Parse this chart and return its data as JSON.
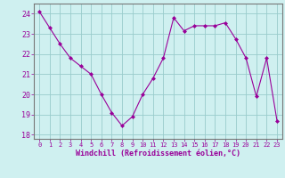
{
  "x": [
    0,
    1,
    2,
    3,
    4,
    5,
    6,
    7,
    8,
    9,
    10,
    11,
    12,
    13,
    14,
    15,
    16,
    17,
    18,
    19,
    20,
    21,
    22,
    23
  ],
  "y": [
    24.1,
    23.3,
    22.5,
    21.8,
    21.4,
    21.0,
    20.0,
    19.1,
    18.45,
    18.9,
    20.0,
    20.8,
    21.8,
    23.8,
    23.15,
    23.4,
    23.4,
    23.4,
    23.55,
    22.75,
    21.8,
    19.9,
    21.8,
    18.7
  ],
  "line_color": "#990099",
  "marker": "D",
  "marker_size": 2,
  "bg_color": "#cff0f0",
  "grid_color": "#99cccc",
  "xlabel": "Windchill (Refroidissement éolien,°C)",
  "xlabel_color": "#990099",
  "xlim": [
    -0.5,
    23.5
  ],
  "ylim": [
    17.8,
    24.5
  ],
  "yticks": [
    18,
    19,
    20,
    21,
    22,
    23,
    24
  ],
  "xticks": [
    0,
    1,
    2,
    3,
    4,
    5,
    6,
    7,
    8,
    9,
    10,
    11,
    12,
    13,
    14,
    15,
    16,
    17,
    18,
    19,
    20,
    21,
    22,
    23
  ],
  "tick_color": "#990099",
  "border_color": "#777777"
}
